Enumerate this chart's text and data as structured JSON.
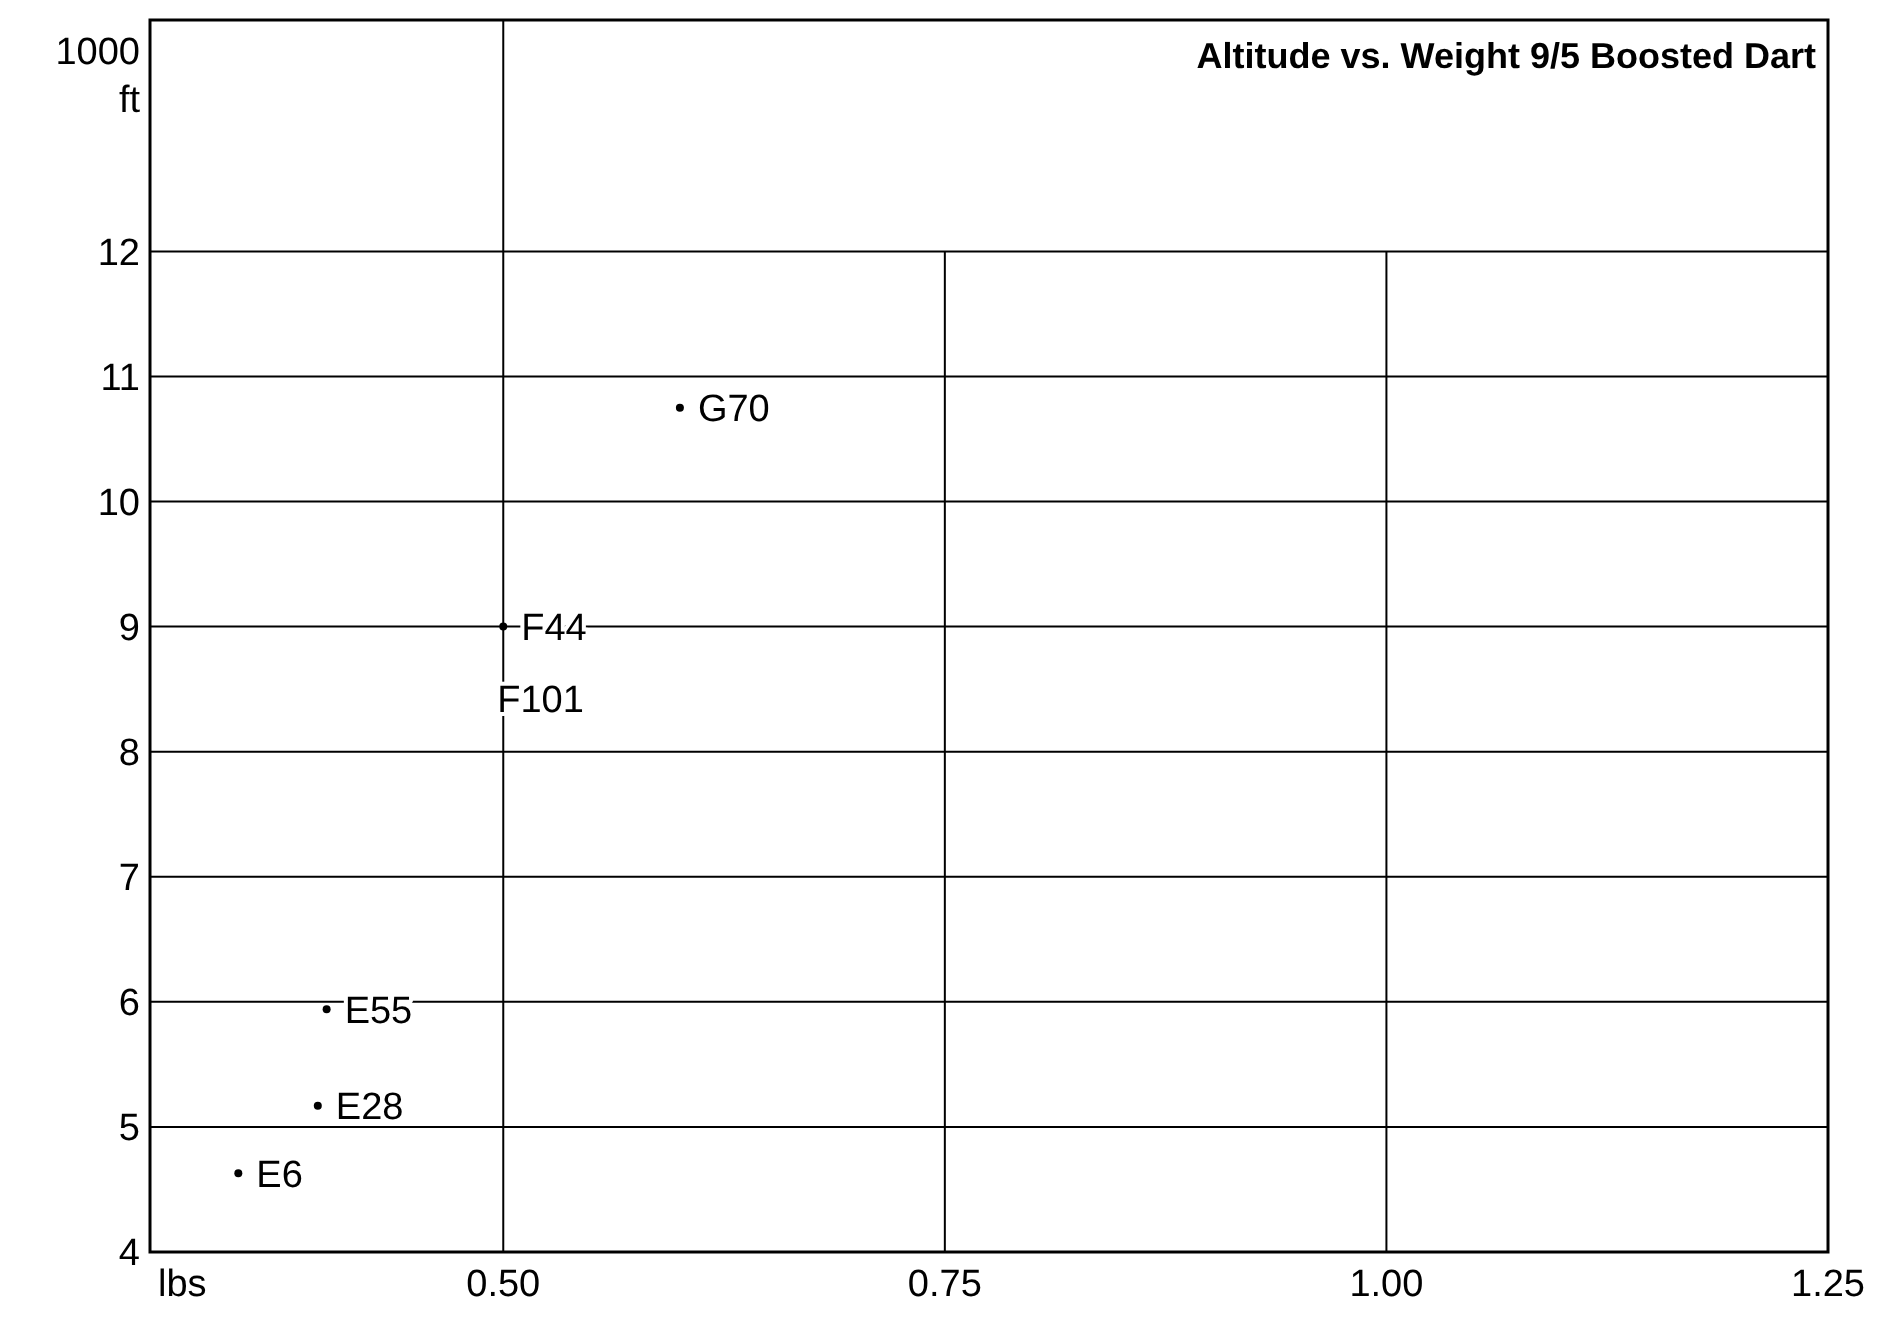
{
  "chart_data": {
    "type": "scatter",
    "title": "Altitude vs. Weight 9/5 Boosted Dart",
    "xlabel": "lbs",
    "ylabel": "1000 ft",
    "x": [
      0.35,
      0.395,
      0.4,
      0.5,
      0.6
    ],
    "values": [
      4.63,
      5.17,
      5.94,
      9.0,
      10.75
    ],
    "color": "#000000",
    "marker": "circle",
    "grid": true,
    "xlim": [
      0.3,
      1.25
    ],
    "ylim": [
      4,
      13.85
    ],
    "xticks": [
      {
        "value": 0.5,
        "label": "0.50"
      },
      {
        "value": 0.75,
        "label": "0.75"
      },
      {
        "value": 1.0,
        "label": "1.00"
      },
      {
        "value": 1.25,
        "label": "1.25"
      }
    ],
    "yticks": [
      4,
      5,
      6,
      7,
      8,
      9,
      10,
      11,
      12
    ],
    "annotations": [
      {
        "text": "E6",
        "x": 0.35,
        "y": 4.63
      },
      {
        "text": "E28",
        "x": 0.395,
        "y": 5.17
      },
      {
        "text": "E55",
        "x": 0.4,
        "y": 5.94
      },
      {
        "text": "F44",
        "x": 0.5,
        "y": 9.0
      },
      {
        "text": "F101",
        "x": 0.5,
        "y": 9.0
      },
      {
        "text": "G70",
        "x": 0.6,
        "y": 10.75
      }
    ]
  }
}
